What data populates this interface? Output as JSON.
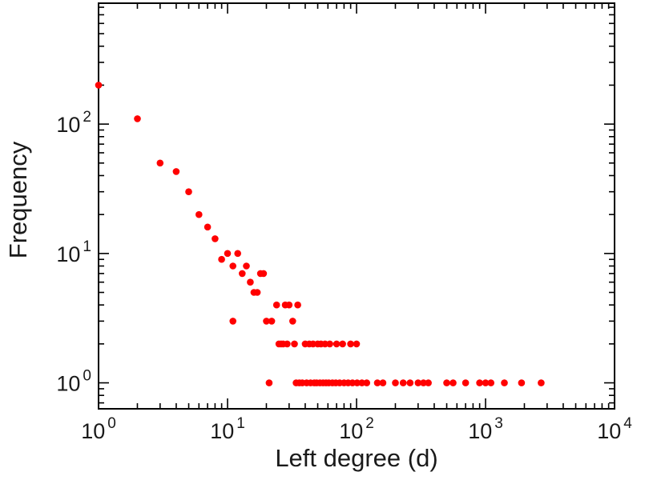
{
  "figure": {
    "background": "#ffffff",
    "frame_color": "#000000",
    "tick_color": "#000000",
    "text_color": "#1a1a1a"
  },
  "chart_data": {
    "type": "scatter",
    "xlabel": "Left degree (d)",
    "ylabel": "Frequency",
    "x_scale": "log",
    "y_scale": "log",
    "xlim": [
      1,
      10000
    ],
    "ylim": [
      0.63,
      860
    ],
    "grid": false,
    "legend": null,
    "x_major_ticks": [
      {
        "value": 1,
        "base": "10",
        "exponent": "0"
      },
      {
        "value": 10,
        "base": "10",
        "exponent": "1"
      },
      {
        "value": 100,
        "base": "10",
        "exponent": "2"
      },
      {
        "value": 1000,
        "base": "10",
        "exponent": "3"
      },
      {
        "value": 10000,
        "base": "10",
        "exponent": "4"
      }
    ],
    "y_major_ticks": [
      {
        "value": 1,
        "base": "10",
        "exponent": "0"
      },
      {
        "value": 10,
        "base": "10",
        "exponent": "1"
      },
      {
        "value": 100,
        "base": "10",
        "exponent": "2"
      }
    ],
    "marker": {
      "shape": "circle",
      "color": "#ff0000",
      "radius": 4.3
    },
    "points": [
      [
        1,
        200
      ],
      [
        2,
        110
      ],
      [
        3,
        50
      ],
      [
        4,
        43
      ],
      [
        5,
        30
      ],
      [
        6,
        20
      ],
      [
        7,
        16
      ],
      [
        8,
        13
      ],
      [
        9,
        9
      ],
      [
        10,
        10
      ],
      [
        11,
        8
      ],
      [
        12,
        10
      ],
      [
        13,
        7
      ],
      [
        14,
        8
      ],
      [
        15,
        6
      ],
      [
        16,
        5
      ],
      [
        17,
        5
      ],
      [
        18,
        7
      ],
      [
        19,
        7
      ],
      [
        11,
        3
      ],
      [
        20,
        3
      ],
      [
        22,
        3
      ],
      [
        32,
        3
      ],
      [
        24,
        4
      ],
      [
        28,
        4
      ],
      [
        30,
        4
      ],
      [
        35,
        4
      ],
      [
        25,
        2
      ],
      [
        26,
        2
      ],
      [
        27,
        2
      ],
      [
        29,
        2
      ],
      [
        33,
        2
      ],
      [
        40,
        2
      ],
      [
        43,
        2
      ],
      [
        46,
        2
      ],
      [
        50,
        2
      ],
      [
        53,
        2
      ],
      [
        57,
        2
      ],
      [
        62,
        2
      ],
      [
        70,
        2
      ],
      [
        78,
        2
      ],
      [
        90,
        2
      ],
      [
        100,
        2
      ],
      [
        21,
        1
      ],
      [
        34,
        1
      ],
      [
        36,
        1
      ],
      [
        38,
        1
      ],
      [
        41,
        1
      ],
      [
        44,
        1
      ],
      [
        47,
        1
      ],
      [
        49,
        1
      ],
      [
        52,
        1
      ],
      [
        55,
        1
      ],
      [
        58,
        1
      ],
      [
        61,
        1
      ],
      [
        65,
        1
      ],
      [
        69,
        1
      ],
      [
        74,
        1
      ],
      [
        80,
        1
      ],
      [
        86,
        1
      ],
      [
        93,
        1
      ],
      [
        101,
        1
      ],
      [
        110,
        1
      ],
      [
        120,
        1
      ],
      [
        145,
        1
      ],
      [
        160,
        1
      ],
      [
        200,
        1
      ],
      [
        230,
        1
      ],
      [
        260,
        1
      ],
      [
        300,
        1
      ],
      [
        330,
        1
      ],
      [
        360,
        1
      ],
      [
        500,
        1
      ],
      [
        560,
        1
      ],
      [
        700,
        1
      ],
      [
        900,
        1
      ],
      [
        1000,
        1
      ],
      [
        1100,
        1
      ],
      [
        1400,
        1
      ],
      [
        1900,
        1
      ],
      [
        2700,
        1
      ]
    ]
  }
}
